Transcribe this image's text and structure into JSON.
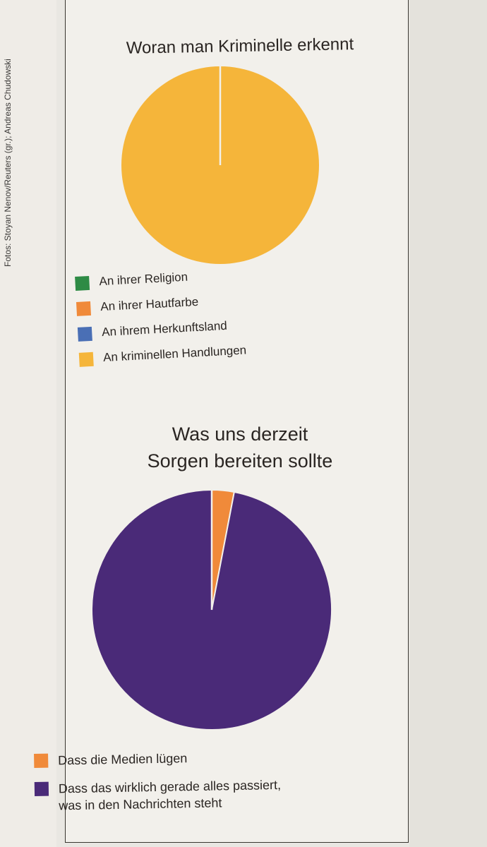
{
  "credit": "Fotos: Stoyan Nenov/Reuters (gr.); Andreas Chudowski",
  "chart_data": [
    {
      "type": "pie",
      "title": "Woran man Kriminelle erkennt",
      "slices": [
        {
          "label": "An ihrer Religion",
          "value": 0,
          "color": "#2e8b45"
        },
        {
          "label": "An ihrer Hautfarbe",
          "value": 0,
          "color": "#f08a3a"
        },
        {
          "label": "An ihrem Herkunftsland",
          "value": 0,
          "color": "#4a6fb5"
        },
        {
          "label": "An kriminellen Handlungen",
          "value": 100,
          "color": "#f5b53a"
        }
      ]
    },
    {
      "type": "pie",
      "title": "Was uns derzeit Sorgen bereiten sollte",
      "title_lines": [
        "Was uns derzeit",
        "Sorgen bereiten sollte"
      ],
      "slices": [
        {
          "label": "Dass die Medien lügen",
          "value": 3,
          "color": "#f08a3a"
        },
        {
          "label": "Dass das wirklich gerade alles passiert, was in den Nachrichten steht",
          "label_lines": [
            "Dass das wirklich gerade alles passiert,",
            "was in den Nachrichten steht"
          ],
          "value": 97,
          "color": "#4a2a78"
        }
      ]
    }
  ]
}
